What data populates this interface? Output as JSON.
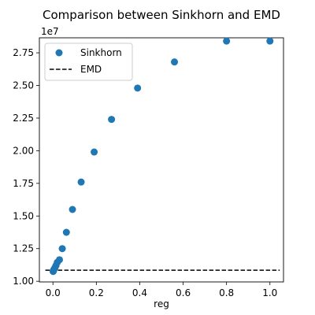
{
  "colors": {
    "sinkhorn": "#1f77b4",
    "emd": "#000000",
    "axes": "#000000",
    "background": "#ffffff"
  },
  "chart_data": {
    "type": "scatter",
    "title": "Comparison between Sinkhorn and EMD",
    "xlabel": "reg",
    "ylabel": "",
    "y_offset_label": "1e7",
    "xlim": [
      -0.0625,
      1.0625
    ],
    "ylim": [
      9.95,
      28.65
    ],
    "y_scale_factor": 10000000,
    "xticks": [
      0.0,
      0.2,
      0.4,
      0.6,
      0.8,
      1.0
    ],
    "xtick_labels": [
      "0.0",
      "0.2",
      "0.4",
      "0.6",
      "0.8",
      "1.0"
    ],
    "yticks": [
      10.0,
      12.5,
      15.0,
      17.5,
      20.0,
      22.5,
      25.0,
      27.5
    ],
    "ytick_labels": [
      "1.00",
      "1.25",
      "1.50",
      "1.75",
      "2.00",
      "2.25",
      "2.50",
      "2.75"
    ],
    "grid": false,
    "legend_position": "upper-left",
    "series": [
      {
        "name": "Sinkhorn",
        "kind": "points",
        "x": [
          0.001,
          0.0015,
          0.002,
          0.003,
          0.0045,
          0.0065,
          0.0095,
          0.014,
          0.02,
          0.03,
          0.043,
          0.062,
          0.09,
          0.13,
          0.19,
          0.27,
          0.39,
          0.56,
          0.8,
          1.0
        ],
        "y": [
          10.75,
          10.77,
          10.8,
          10.85,
          10.9,
          10.95,
          11.05,
          11.2,
          11.45,
          11.65,
          12.5,
          13.75,
          15.5,
          17.6,
          19.9,
          22.4,
          24.8,
          26.8,
          28.4,
          28.4
        ]
      },
      {
        "name": "EMD",
        "kind": "dashed-line",
        "x": [
          -0.035,
          1.045
        ],
        "y": [
          10.85,
          10.85
        ]
      }
    ]
  }
}
